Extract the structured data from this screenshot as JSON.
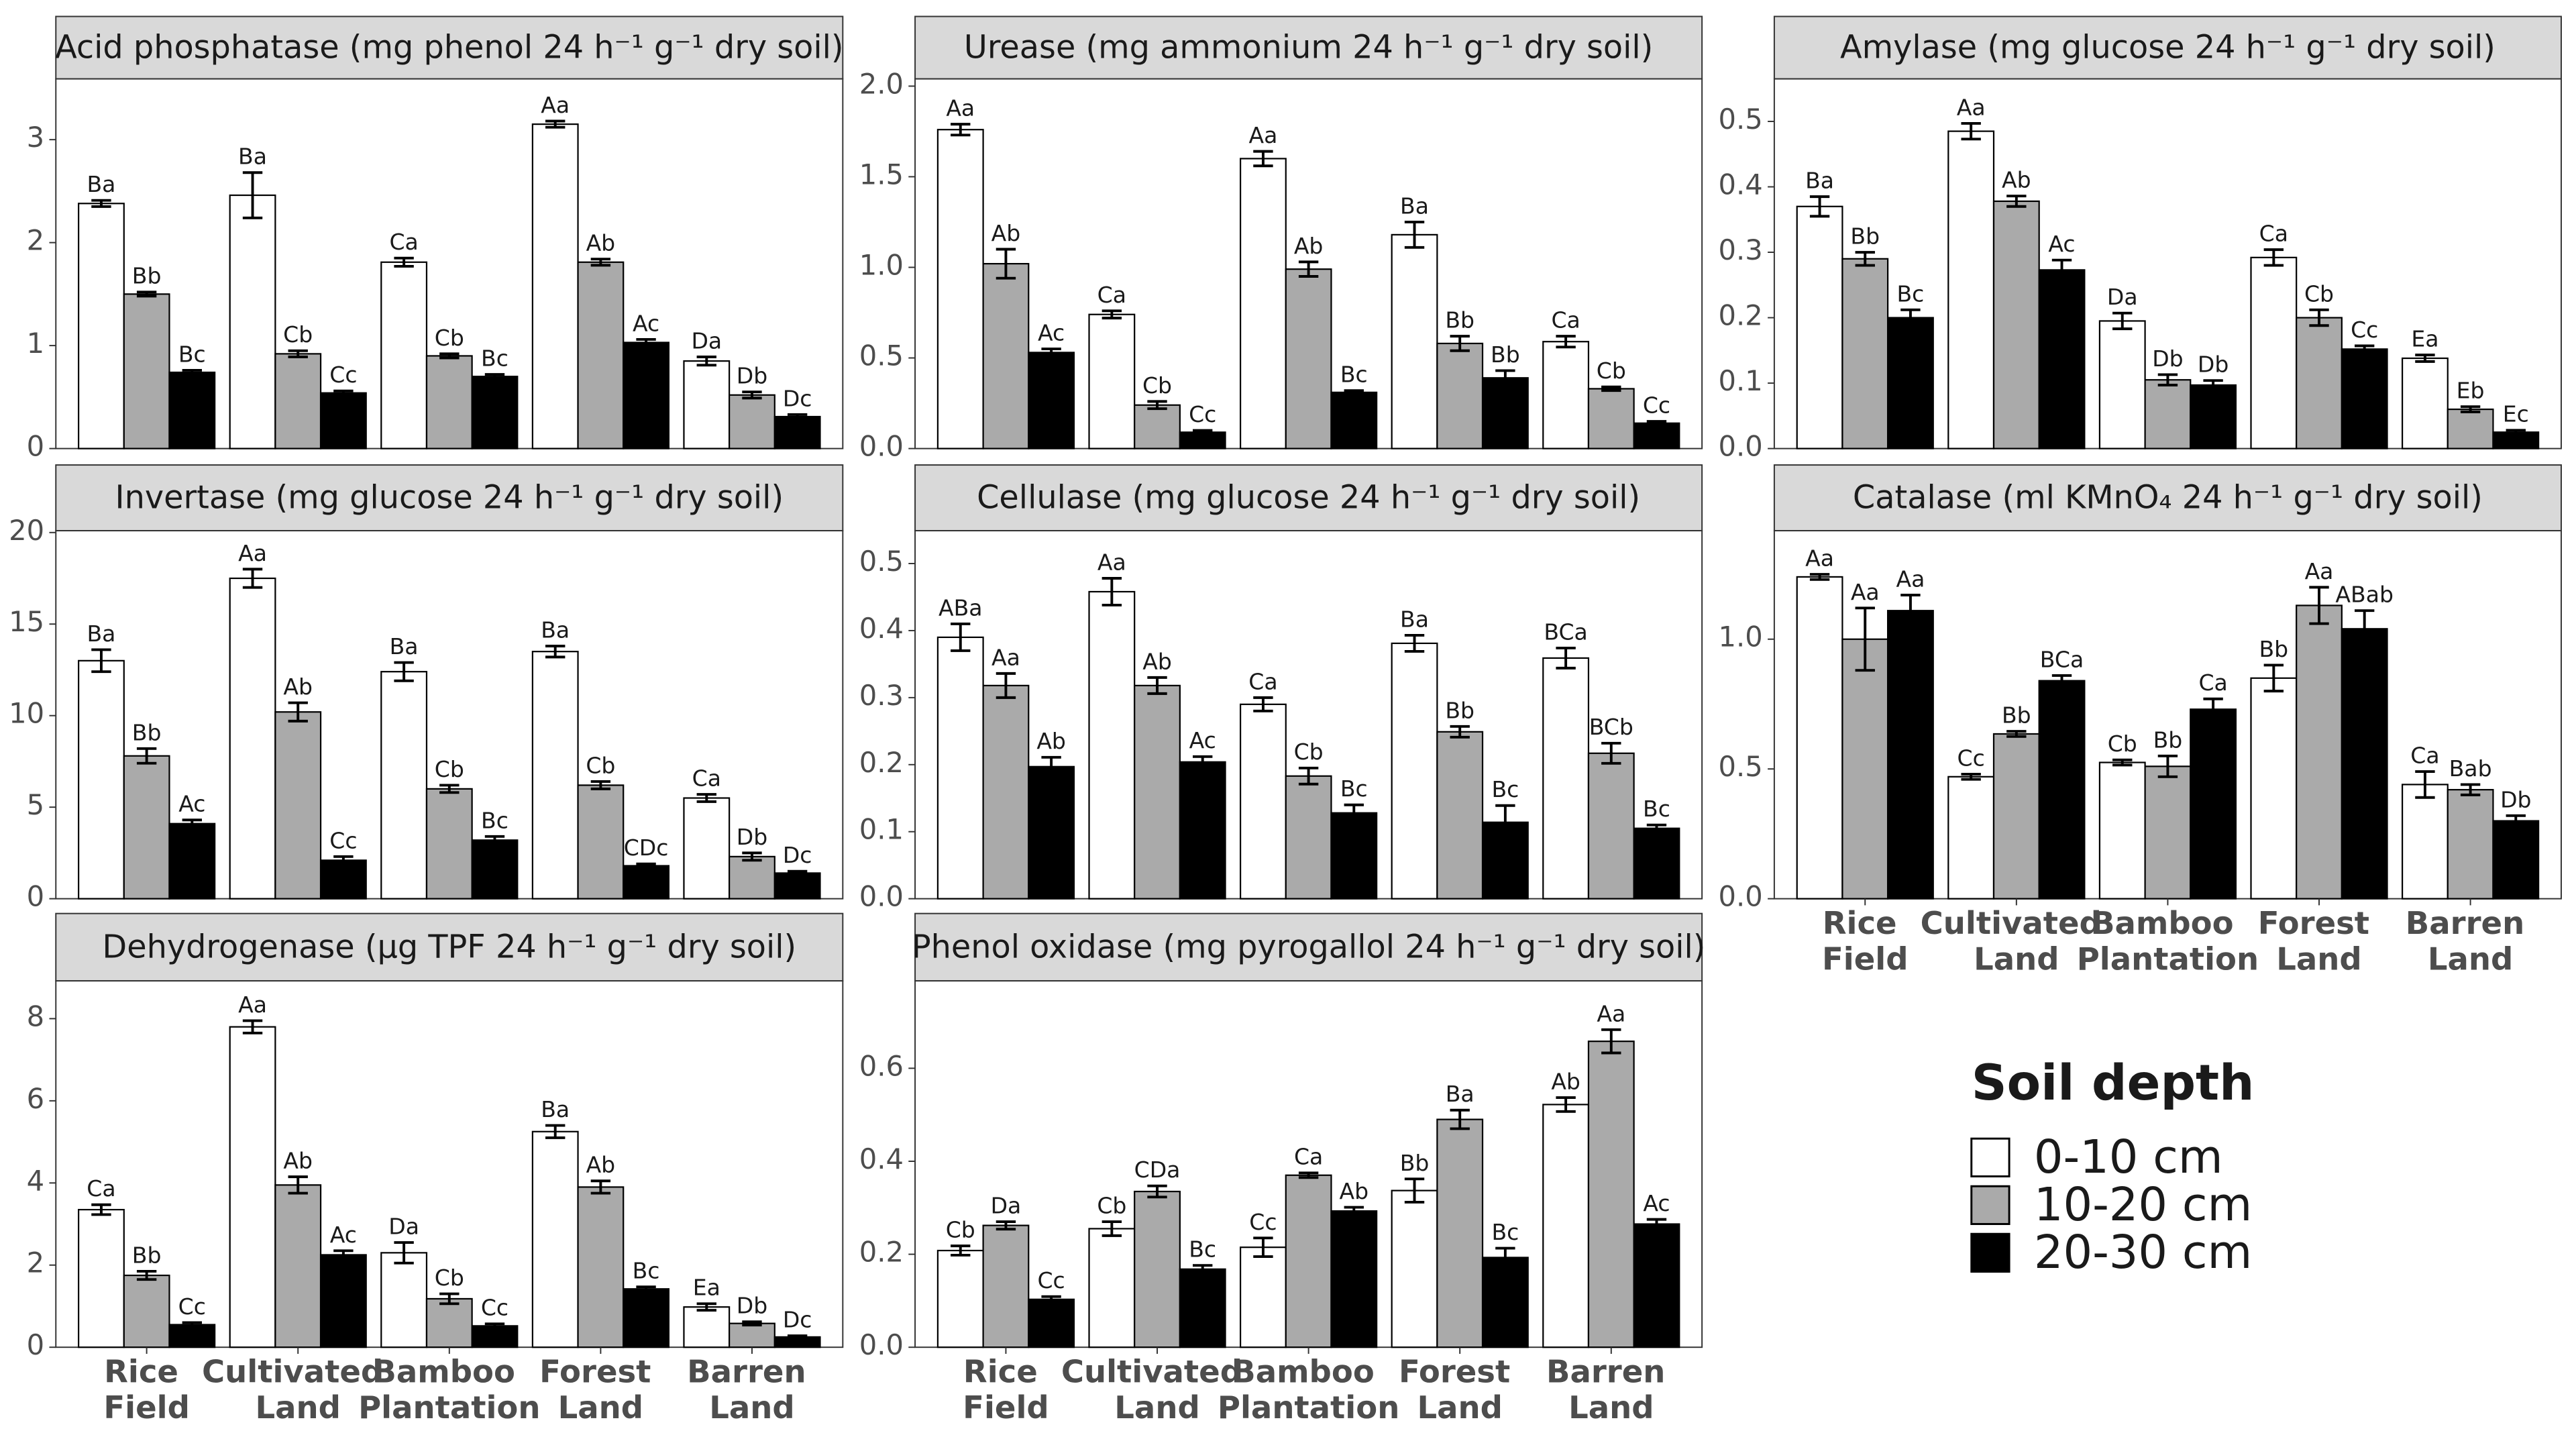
{
  "categories": [
    "Rice Field",
    "Cultivated Land",
    "Bamboo Plantation",
    "Forest Land",
    "Barren Land"
  ],
  "legend": {
    "title": "Soil depth",
    "entries": [
      {
        "name": "0-10 cm",
        "color": "#ffffff"
      },
      {
        "name": "10-20 cm",
        "color": "#aaaaaa"
      },
      {
        "name": "20-30 cm",
        "color": "#000000"
      }
    ]
  },
  "chart_data": [
    {
      "type": "bar",
      "title": "Acid phosphatase (mg phenol 24 h⁻¹ g⁻¹ dry soil)",
      "ylim": [
        0,
        3.59
      ],
      "yticks": [
        0,
        1,
        2,
        3
      ],
      "series": [
        {
          "values": [
            2.38,
            2.46,
            1.81,
            3.15,
            0.85
          ],
          "errors": [
            0.03,
            0.22,
            0.04,
            0.03,
            0.04
          ],
          "letters": [
            "Ba",
            "Ba",
            "Ca",
            "Aa",
            "Da"
          ]
        },
        {
          "values": [
            1.5,
            0.92,
            0.9,
            1.81,
            0.52
          ],
          "errors": [
            0.02,
            0.03,
            0.02,
            0.03,
            0.03
          ],
          "letters": [
            "Bb",
            "Cb",
            "Cb",
            "Ab",
            "Db"
          ]
        },
        {
          "values": [
            0.74,
            0.54,
            0.7,
            1.03,
            0.31
          ],
          "errors": [
            0.02,
            0.02,
            0.02,
            0.03,
            0.02
          ],
          "letters": [
            "Bc",
            "Cc",
            "Bc",
            "Ac",
            "Dc"
          ]
        }
      ]
    },
    {
      "type": "bar",
      "title": "Urease (mg ammonium 24 h⁻¹ g⁻¹ dry soil)",
      "ylim": [
        0,
        2.04
      ],
      "yticks": [
        {
          "value": 0,
          "label": "0.0"
        },
        0.5,
        {
          "value": 1,
          "label": "1.0"
        },
        1.5,
        {
          "value": 2,
          "label": "2.0"
        }
      ],
      "series": [
        {
          "values": [
            1.76,
            0.74,
            1.6,
            1.18,
            0.59
          ],
          "errors": [
            0.03,
            0.02,
            0.04,
            0.07,
            0.03
          ],
          "letters": [
            "Aa",
            "Ca",
            "Aa",
            "Ba",
            "Ca"
          ]
        },
        {
          "values": [
            1.02,
            0.24,
            0.99,
            0.58,
            0.33
          ],
          "errors": [
            0.08,
            0.02,
            0.04,
            0.04,
            0.01
          ],
          "letters": [
            "Ab",
            "Cb",
            "Ab",
            "Bb",
            "Cb"
          ]
        },
        {
          "values": [
            0.53,
            0.09,
            0.31,
            0.39,
            0.14
          ],
          "errors": [
            0.02,
            0.01,
            0.01,
            0.04,
            0.01
          ],
          "letters": [
            "Ac",
            "Cc",
            "Bc",
            "Bb",
            "Cc"
          ]
        }
      ]
    },
    {
      "type": "bar",
      "title": "Amylase (mg glucose 24 h⁻¹ g⁻¹ dry soil)",
      "ylim": [
        0,
        0.565
      ],
      "yticks": [
        {
          "value": 0,
          "label": "0.0"
        },
        0.1,
        0.2,
        0.3,
        0.4,
        0.5
      ],
      "series": [
        {
          "values": [
            0.37,
            0.485,
            0.195,
            0.292,
            0.138
          ],
          "errors": [
            0.015,
            0.012,
            0.012,
            0.012,
            0.005
          ],
          "letters": [
            "Ba",
            "Aa",
            "Da",
            "Ca",
            "Ea"
          ]
        },
        {
          "values": [
            0.29,
            0.378,
            0.105,
            0.2,
            0.06
          ],
          "errors": [
            0.01,
            0.008,
            0.008,
            0.012,
            0.004
          ],
          "letters": [
            "Bb",
            "Ab",
            "Db",
            "Cb",
            "Eb"
          ]
        },
        {
          "values": [
            0.2,
            0.273,
            0.097,
            0.152,
            0.025
          ],
          "errors": [
            0.012,
            0.015,
            0.007,
            0.005,
            0.003
          ],
          "letters": [
            "Bc",
            "Ac",
            "Db",
            "Cc",
            "Ec"
          ]
        }
      ]
    },
    {
      "type": "bar",
      "title": "Invertase (mg glucose 24 h⁻¹ g⁻¹ dry soil)",
      "ylim": [
        0,
        20.1
      ],
      "yticks": [
        0,
        5,
        10,
        15,
        20
      ],
      "series": [
        {
          "values": [
            13.0,
            17.5,
            12.4,
            13.5,
            5.5
          ],
          "errors": [
            0.6,
            0.5,
            0.5,
            0.3,
            0.2
          ],
          "letters": [
            "Ba",
            "Aa",
            "Ba",
            "Ba",
            "Ca"
          ]
        },
        {
          "values": [
            7.8,
            10.2,
            6.0,
            6.2,
            2.3
          ],
          "errors": [
            0.4,
            0.5,
            0.2,
            0.2,
            0.2
          ],
          "letters": [
            "Bb",
            "Ab",
            "Cb",
            "Cb",
            "Db"
          ]
        },
        {
          "values": [
            4.1,
            2.1,
            3.2,
            1.8,
            1.4
          ],
          "errors": [
            0.2,
            0.2,
            0.2,
            0.1,
            0.1
          ],
          "letters": [
            "Ac",
            "Cc",
            "Bc",
            "CDc",
            "Dc"
          ]
        }
      ]
    },
    {
      "type": "bar",
      "title": "Cellulase (mg glucose 24 h⁻¹ g⁻¹ dry soil)",
      "ylim": [
        0,
        0.549
      ],
      "yticks": [
        {
          "value": 0,
          "label": "0.0"
        },
        0.1,
        0.2,
        0.3,
        0.4,
        0.5
      ],
      "series": [
        {
          "values": [
            0.39,
            0.458,
            0.29,
            0.381,
            0.359
          ],
          "errors": [
            0.02,
            0.02,
            0.01,
            0.012,
            0.015
          ],
          "letters": [
            "ABa",
            "Aa",
            "Ca",
            "Ba",
            "BCa"
          ]
        },
        {
          "values": [
            0.318,
            0.318,
            0.183,
            0.249,
            0.217
          ],
          "errors": [
            0.018,
            0.012,
            0.012,
            0.008,
            0.015
          ],
          "letters": [
            "Aa",
            "Ab",
            "Cb",
            "Bb",
            "BCb"
          ]
        },
        {
          "values": [
            0.197,
            0.204,
            0.128,
            0.114,
            0.105
          ],
          "errors": [
            0.014,
            0.008,
            0.012,
            0.025,
            0.005
          ],
          "letters": [
            "Ab",
            "Ac",
            "Bc",
            "Bc",
            "Bc"
          ]
        }
      ]
    },
    {
      "type": "bar",
      "title": "Catalase (ml KMnO₄ 24 h⁻¹ g⁻¹ dry soil)",
      "ylim": [
        0,
        1.418
      ],
      "yticks": [
        {
          "value": 0,
          "label": "0.0"
        },
        0.5,
        {
          "value": 1,
          "label": "1.0"
        }
      ],
      "series": [
        {
          "values": [
            1.24,
            0.47,
            0.525,
            0.85,
            0.44
          ],
          "errors": [
            0.01,
            0.01,
            0.01,
            0.05,
            0.05
          ],
          "letters": [
            "Aa",
            "Cc",
            "Cb",
            "Bb",
            "Ca"
          ]
        },
        {
          "values": [
            1.0,
            0.635,
            0.51,
            1.13,
            0.42
          ],
          "errors": [
            0.12,
            0.01,
            0.04,
            0.07,
            0.02
          ],
          "letters": [
            "Aa",
            "Bb",
            "Bb",
            "Aa",
            "Bab"
          ]
        },
        {
          "values": [
            1.11,
            0.84,
            0.73,
            1.04,
            0.3
          ],
          "errors": [
            0.06,
            0.02,
            0.04,
            0.07,
            0.02
          ],
          "letters": [
            "Aa",
            "BCa",
            "Ca",
            "ABab",
            "Db"
          ]
        }
      ]
    },
    {
      "type": "bar",
      "title": "Dehydrogenase (µg TPF 24 h⁻¹ g⁻¹ dry soil)",
      "ylim": [
        0,
        8.92
      ],
      "yticks": [
        0,
        2,
        4,
        6,
        8
      ],
      "series": [
        {
          "values": [
            3.35,
            7.8,
            2.3,
            5.25,
            0.98
          ],
          "errors": [
            0.12,
            0.15,
            0.25,
            0.15,
            0.08
          ],
          "letters": [
            "Ca",
            "Aa",
            "Da",
            "Ba",
            "Ea"
          ]
        },
        {
          "values": [
            1.75,
            3.95,
            1.18,
            3.9,
            0.58
          ],
          "errors": [
            0.1,
            0.2,
            0.12,
            0.15,
            0.04
          ],
          "letters": [
            "Bb",
            "Ab",
            "Cb",
            "Ab",
            "Db"
          ]
        },
        {
          "values": [
            0.55,
            2.25,
            0.52,
            1.42,
            0.25
          ],
          "errors": [
            0.05,
            0.1,
            0.05,
            0.05,
            0.03
          ],
          "letters": [
            "Cc",
            "Ac",
            "Cc",
            "Bc",
            "Dc"
          ]
        }
      ]
    },
    {
      "type": "bar",
      "title": "Phenol oxidase (mg pyrogallol 24 h⁻¹ g⁻¹ dry soil)",
      "ylim": [
        0,
        0.788
      ],
      "yticks": [
        {
          "value": 0,
          "label": "0.0"
        },
        0.2,
        0.4,
        0.6
      ],
      "series": [
        {
          "values": [
            0.208,
            0.255,
            0.215,
            0.337,
            0.522
          ],
          "errors": [
            0.01,
            0.015,
            0.02,
            0.025,
            0.015
          ],
          "letters": [
            "Cb",
            "Cb",
            "Cc",
            "Bb",
            "Ab"
          ]
        },
        {
          "values": [
            0.262,
            0.335,
            0.37,
            0.49,
            0.658
          ],
          "errors": [
            0.008,
            0.012,
            0.005,
            0.02,
            0.025
          ],
          "letters": [
            "Da",
            "CDa",
            "Ca",
            "Ba",
            "Aa"
          ]
        },
        {
          "values": [
            0.103,
            0.168,
            0.293,
            0.193,
            0.265
          ],
          "errors": [
            0.006,
            0.008,
            0.008,
            0.02,
            0.01
          ],
          "letters": [
            "Cc",
            "Bc",
            "Ab",
            "Bc",
            "Ac"
          ]
        }
      ]
    }
  ]
}
